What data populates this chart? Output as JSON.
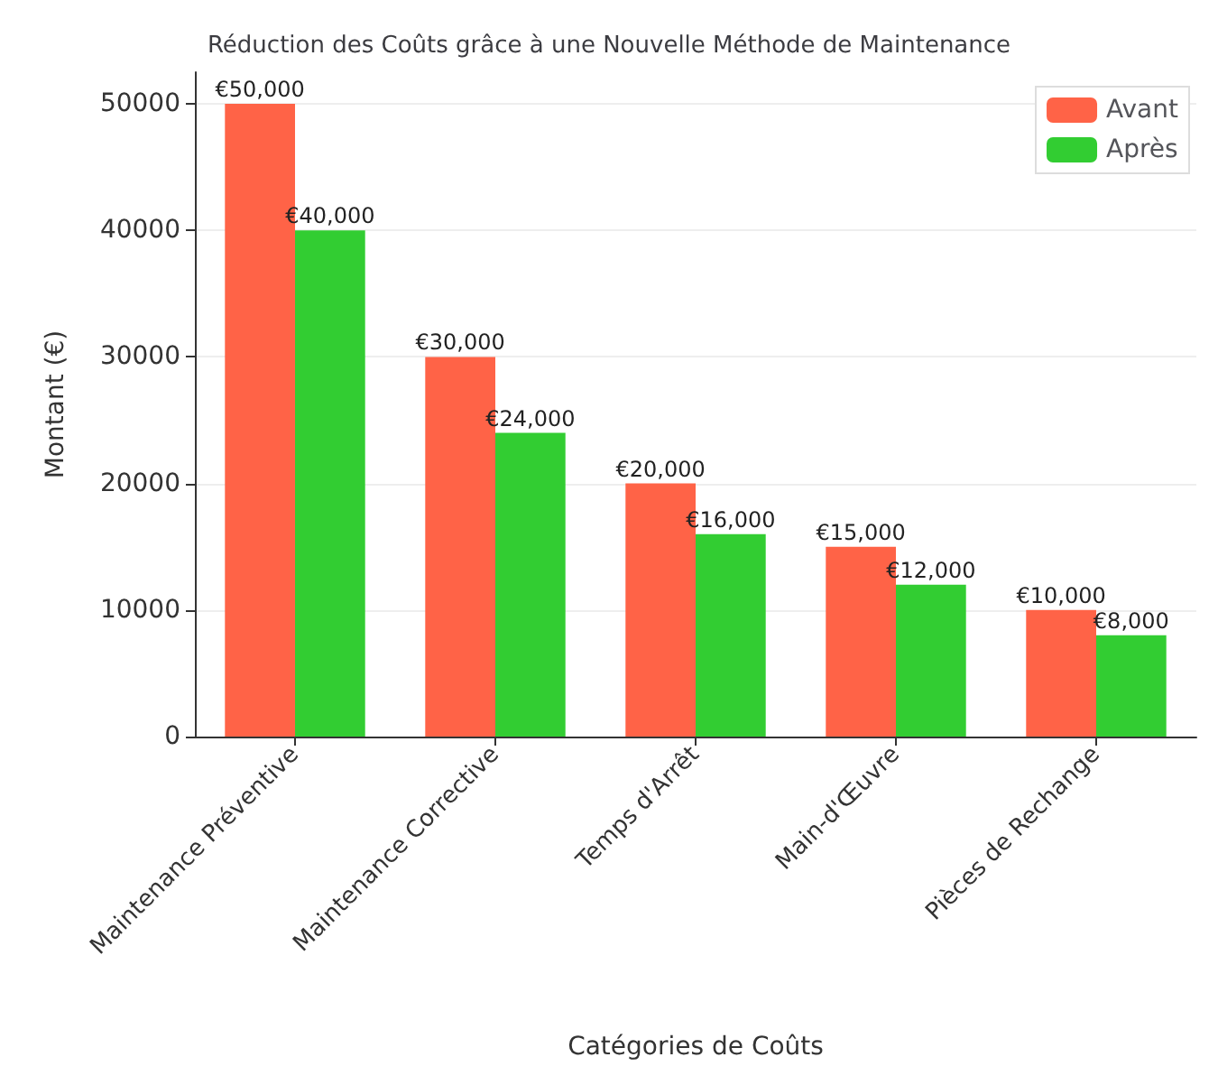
{
  "chart_data": {
    "type": "bar",
    "title": "Réduction des Coûts grâce à une Nouvelle Méthode de Maintenance",
    "xlabel": "Catégories de Coûts",
    "ylabel": "Montant (€)",
    "categories": [
      "Maintenance Préventive",
      "Maintenance Corrective",
      "Temps d'Arrêt",
      "Main-d'Œuvre",
      "Pièces de Rechange"
    ],
    "series": [
      {
        "name": "Avant",
        "color": "#ff6347",
        "values": [
          50000,
          30000,
          20000,
          15000,
          10000
        ],
        "value_labels": [
          "€50,000",
          "€30,000",
          "€20,000",
          "€15,000",
          "€10,000"
        ]
      },
      {
        "name": "Après",
        "color": "#32cd32",
        "values": [
          40000,
          24000,
          16000,
          12000,
          8000
        ],
        "value_labels": [
          "€40,000",
          "€24,000",
          "€16,000",
          "€12,000",
          "€8,000"
        ]
      }
    ],
    "ylim": [
      0,
      52500
    ],
    "yticks": [
      0,
      10000,
      20000,
      30000,
      40000,
      50000
    ],
    "grid": "y",
    "legend": "top right"
  }
}
